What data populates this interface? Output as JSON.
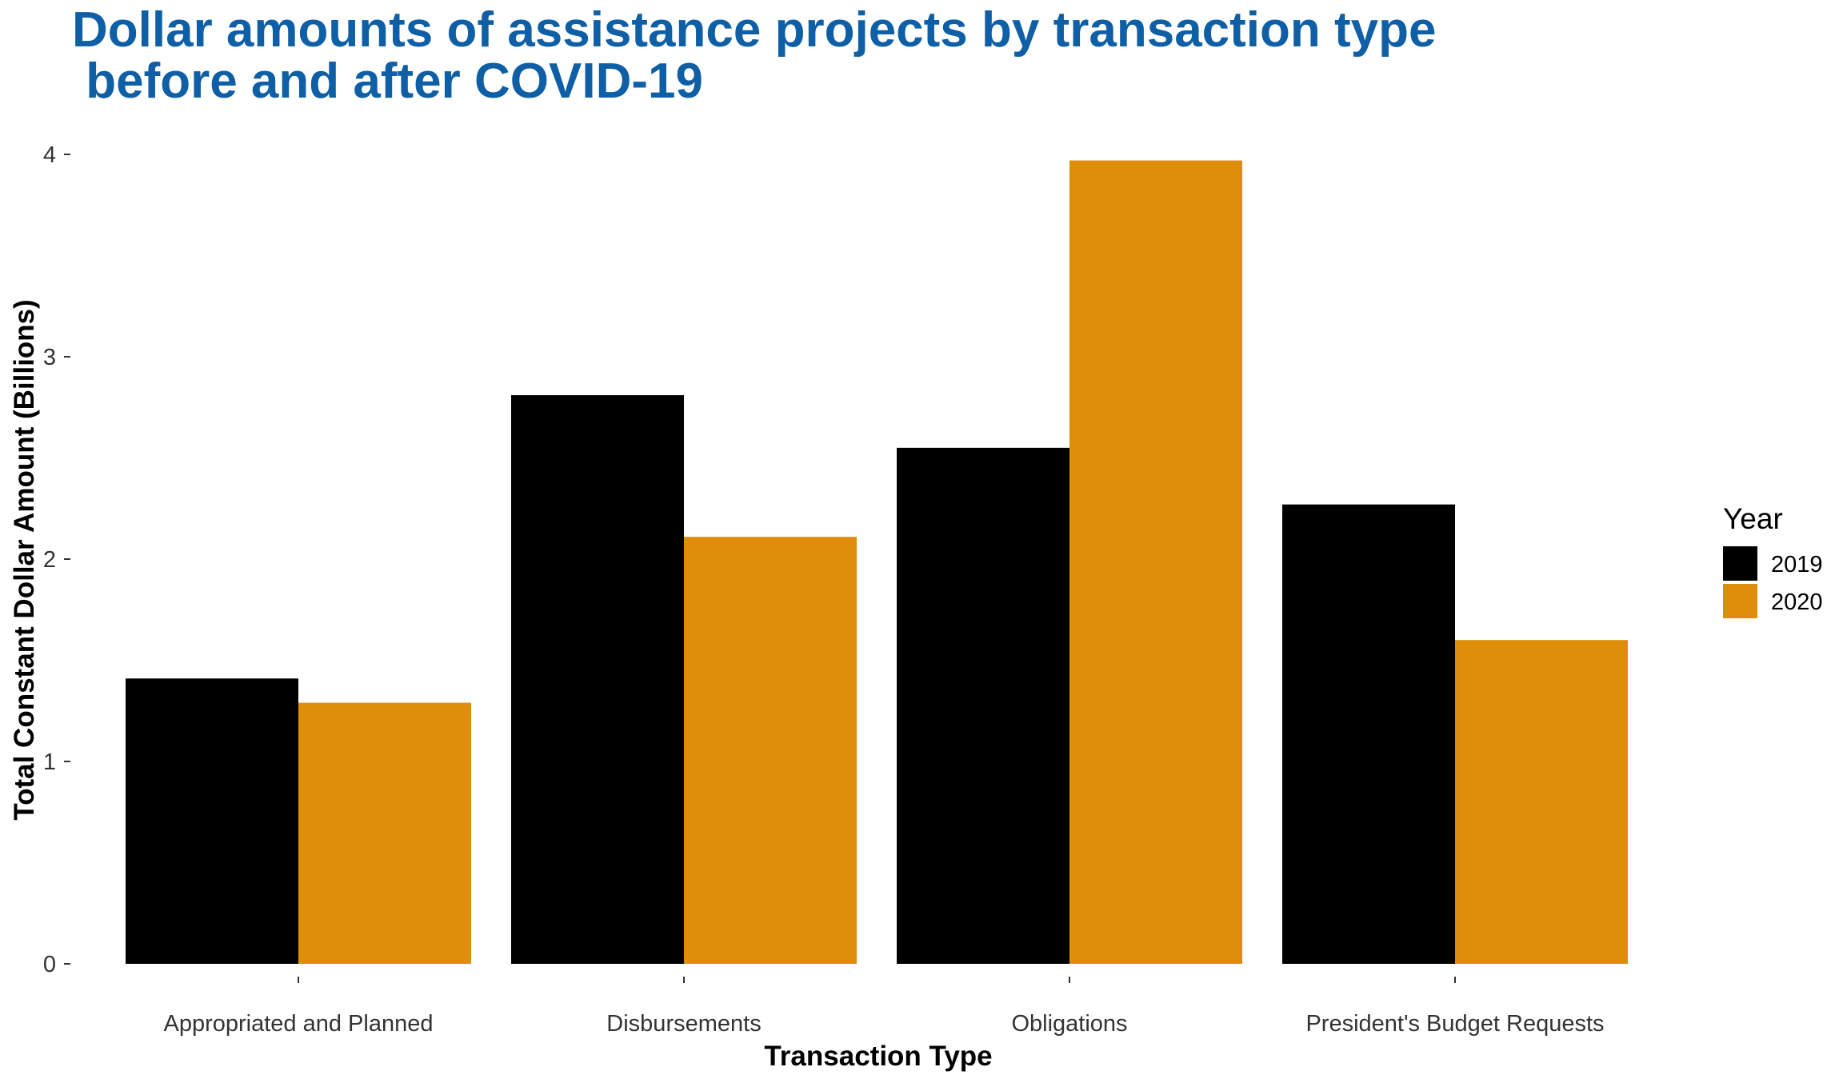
{
  "colors": {
    "title": "#0E5FA6",
    "series_2019": "#000000",
    "series_2020": "#DE8E0A",
    "tick": "#333333"
  },
  "chart_data": {
    "type": "bar",
    "title_lines": [
      "Dollar amounts of assistance projects by transaction type",
      " before and after COVID-19"
    ],
    "xlabel": "Transaction Type",
    "ylabel": "Total Constant Dollar Amount (Billions)",
    "categories": [
      "Appropriated and Planned",
      "Disbursements",
      "Obligations",
      "President's Budget Requests"
    ],
    "series": [
      {
        "name": "2019",
        "values": [
          1.41,
          2.81,
          2.55,
          2.27
        ]
      },
      {
        "name": "2020",
        "values": [
          1.29,
          2.11,
          3.97,
          1.6
        ]
      }
    ],
    "ylim": [
      0,
      4
    ],
    "yticks": [
      0,
      1,
      2,
      3,
      4
    ],
    "grid": false,
    "legend": {
      "title": "Year",
      "placement": "right"
    }
  }
}
